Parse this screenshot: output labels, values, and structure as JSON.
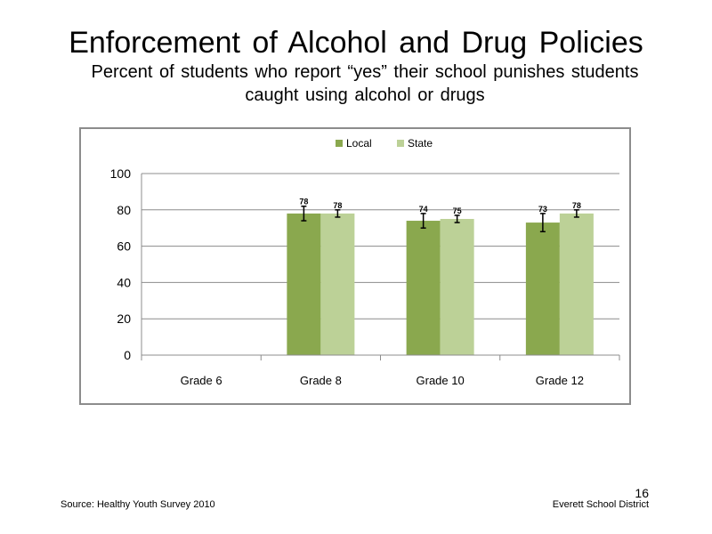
{
  "slide": {
    "title": "Enforcement of Alcohol and Drug Policies",
    "subtitle": "Percent of students who report “yes” their school punishes students caught using alcohol or drugs",
    "source": "Source: Healthy Youth Survey 2010",
    "organization": "Everett School District",
    "page_number": "16"
  },
  "chart_data": {
    "type": "bar",
    "categories": [
      "Grade 6",
      "Grade 8",
      "Grade 10",
      "Grade 12"
    ],
    "series": [
      {
        "name": "Local",
        "color": "#8aa84e",
        "values": [
          null,
          78,
          74,
          73
        ],
        "labels": [
          "",
          "78",
          "74",
          "73"
        ],
        "error": [
          null,
          4,
          4,
          5
        ]
      },
      {
        "name": "State",
        "color": "#bcd197",
        "values": [
          null,
          78,
          75,
          78
        ],
        "labels": [
          "",
          "78",
          "75",
          "78"
        ],
        "error": [
          null,
          2,
          2,
          2
        ]
      }
    ],
    "ylim": [
      0,
      100
    ],
    "yticks": [
      "0",
      "20",
      "40",
      "60",
      "80",
      "100"
    ],
    "grid": true,
    "legend": "top-center"
  }
}
